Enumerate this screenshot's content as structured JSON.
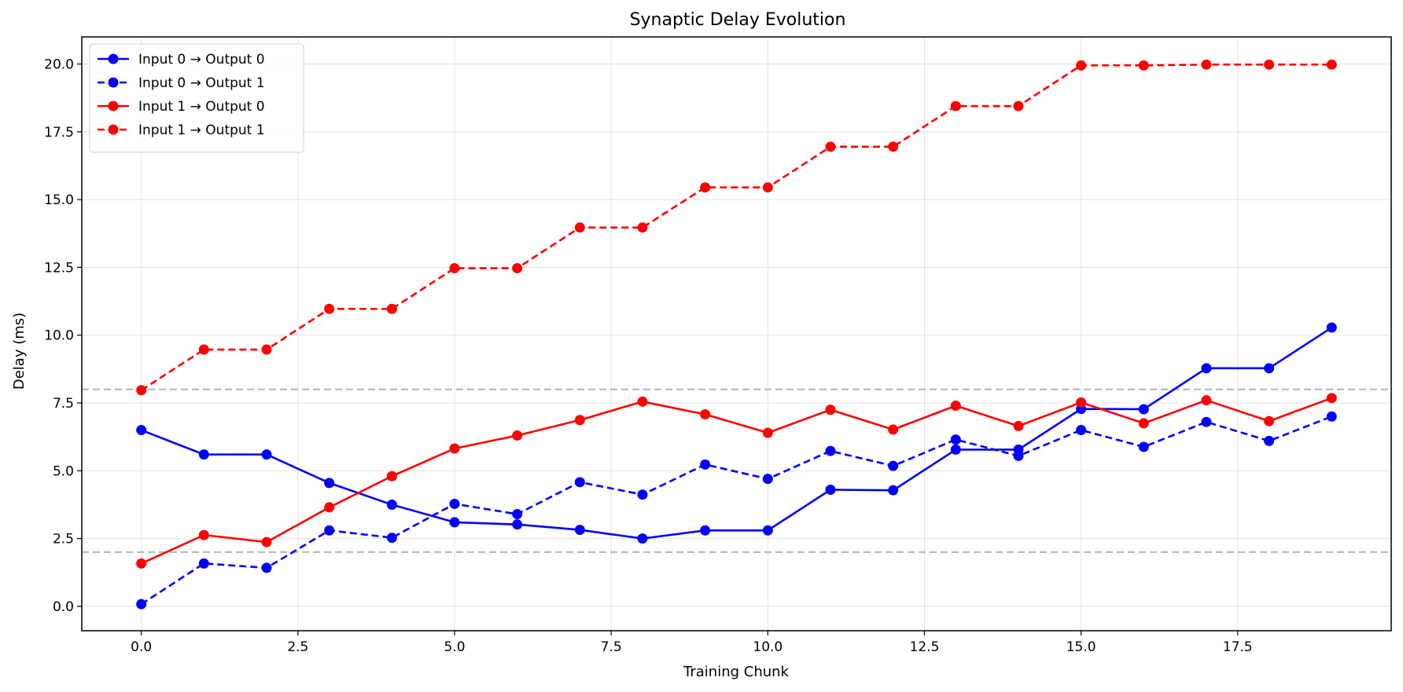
{
  "chart_data": {
    "type": "line",
    "title": "Synaptic Delay Evolution",
    "xlabel": "Training Chunk",
    "ylabel": "Delay (ms)",
    "xlim": [
      -0.95,
      19.95
    ],
    "ylim": [
      -0.9,
      21.0
    ],
    "x_ticks": [
      0.0,
      2.5,
      5.0,
      7.5,
      10.0,
      12.5,
      15.0,
      17.5
    ],
    "x_tick_labels": [
      "0.0",
      "2.5",
      "5.0",
      "7.5",
      "10.0",
      "12.5",
      "15.0",
      "17.5"
    ],
    "y_ticks": [
      0.0,
      2.5,
      5.0,
      7.5,
      10.0,
      12.5,
      15.0,
      17.5,
      20.0
    ],
    "y_tick_labels": [
      "0.0",
      "2.5",
      "5.0",
      "7.5",
      "10.0",
      "12.5",
      "15.0",
      "17.5",
      "20.0"
    ],
    "grid": true,
    "legend_position": "top-left",
    "reference_lines": [
      {
        "y": 2.0,
        "color": "#bbbbbb",
        "style": "dashed"
      },
      {
        "y": 8.0,
        "color": "#bbbbbb",
        "style": "dashed"
      }
    ],
    "x": [
      0,
      1,
      2,
      3,
      4,
      5,
      6,
      7,
      8,
      9,
      10,
      11,
      12,
      13,
      14,
      15,
      16,
      17,
      18,
      19
    ],
    "series": [
      {
        "name": "Input 0 → Output 0",
        "color": "#0000ff",
        "line_style": "solid",
        "marker": "circle",
        "values": [
          6.5,
          5.6,
          5.6,
          4.55,
          3.75,
          3.1,
          3.02,
          2.82,
          2.5,
          2.8,
          2.8,
          4.3,
          4.28,
          5.78,
          5.78,
          7.28,
          7.27,
          8.78,
          8.78,
          10.28
        ]
      },
      {
        "name": "Input 0 → Output 1",
        "color": "#0000ff",
        "line_style": "dashed",
        "marker": "circle",
        "values": [
          0.08,
          1.58,
          1.42,
          2.8,
          2.53,
          3.78,
          3.4,
          4.58,
          4.12,
          5.23,
          4.7,
          5.73,
          5.18,
          6.15,
          5.55,
          6.5,
          5.88,
          6.8,
          6.1,
          7.0
        ]
      },
      {
        "name": "Input 1 → Output 0",
        "color": "#ff0000",
        "line_style": "solid",
        "marker": "circle",
        "values": [
          1.58,
          2.63,
          2.37,
          3.65,
          4.8,
          5.82,
          6.3,
          6.87,
          7.55,
          7.08,
          6.4,
          7.25,
          6.52,
          7.4,
          6.65,
          7.52,
          6.75,
          7.6,
          6.83,
          7.68
        ]
      },
      {
        "name": "Input 1 → Output 1",
        "color": "#ff0000",
        "line_style": "dashed",
        "marker": "circle",
        "values": [
          7.97,
          9.47,
          9.47,
          10.97,
          10.97,
          12.47,
          12.47,
          13.97,
          13.97,
          15.45,
          15.45,
          16.95,
          16.95,
          18.45,
          18.45,
          19.95,
          19.95,
          19.98,
          19.98,
          19.98
        ]
      }
    ]
  }
}
